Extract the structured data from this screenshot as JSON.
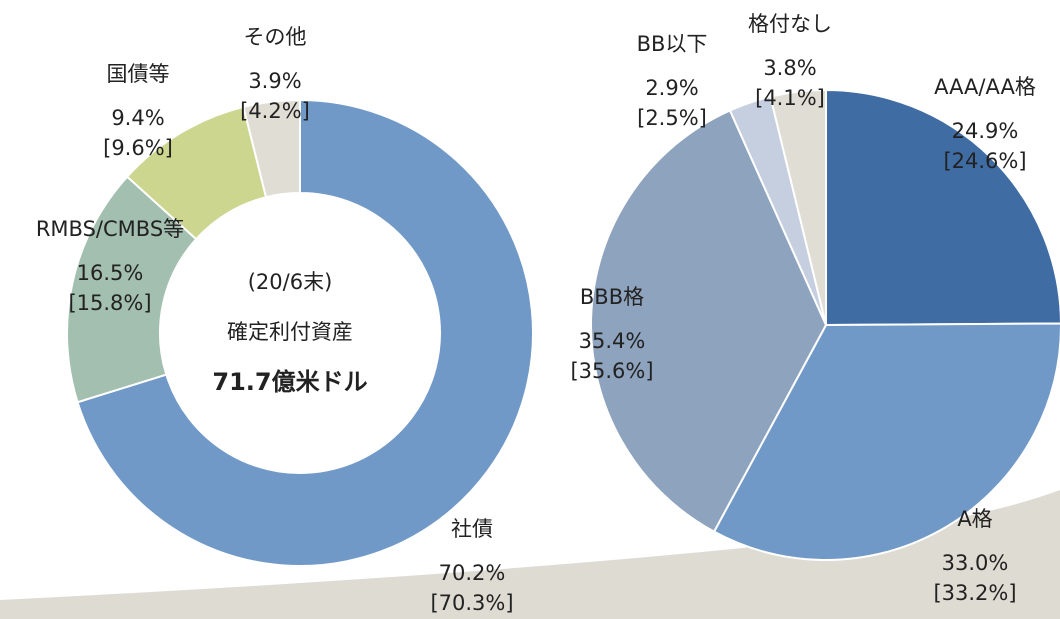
{
  "chart_data": [
    {
      "type": "donut",
      "center_label": [
        "(20/6末)",
        "確定利付資産",
        "71.7億米ドル"
      ],
      "categories": [
        "社債",
        "RMBS/CMBS等",
        "国債等",
        "その他"
      ],
      "values": [
        70.2,
        16.5,
        9.4,
        3.9
      ],
      "value_labels": [
        "70.2%",
        "16.5%",
        "9.4%",
        "3.9%"
      ],
      "prior_value_labels": [
        "[70.3%]",
        "[15.8%]",
        "[9.6%]",
        "[4.2%]"
      ],
      "colors": [
        "#7099c8",
        "#a3bfb0",
        "#cdd68f",
        "#e0ddd5"
      ]
    },
    {
      "type": "pie",
      "categories": [
        "AAA/AA格",
        "A格",
        "BBB格",
        "BB以下",
        "格付なし"
      ],
      "values": [
        24.9,
        33.0,
        35.4,
        2.9,
        3.8
      ],
      "value_labels": [
        "24.9%",
        "33.0%",
        "35.4%",
        "2.9%",
        "3.8%"
      ],
      "prior_value_labels": [
        "[24.6%]",
        "[33.2%]",
        "[35.6%]",
        "[2.5%]",
        "[4.1%]"
      ],
      "colors": [
        "#3f6ca3",
        "#7099c8",
        "#8ea3bd",
        "#c5cfe0",
        "#e0ddd5"
      ]
    }
  ]
}
